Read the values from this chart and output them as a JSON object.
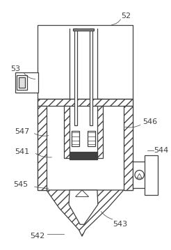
{
  "bg_color": "#ffffff",
  "line_color": "#404040",
  "lw": 0.9,
  "figsize": [
    2.46,
    3.59
  ],
  "dpi": 100
}
